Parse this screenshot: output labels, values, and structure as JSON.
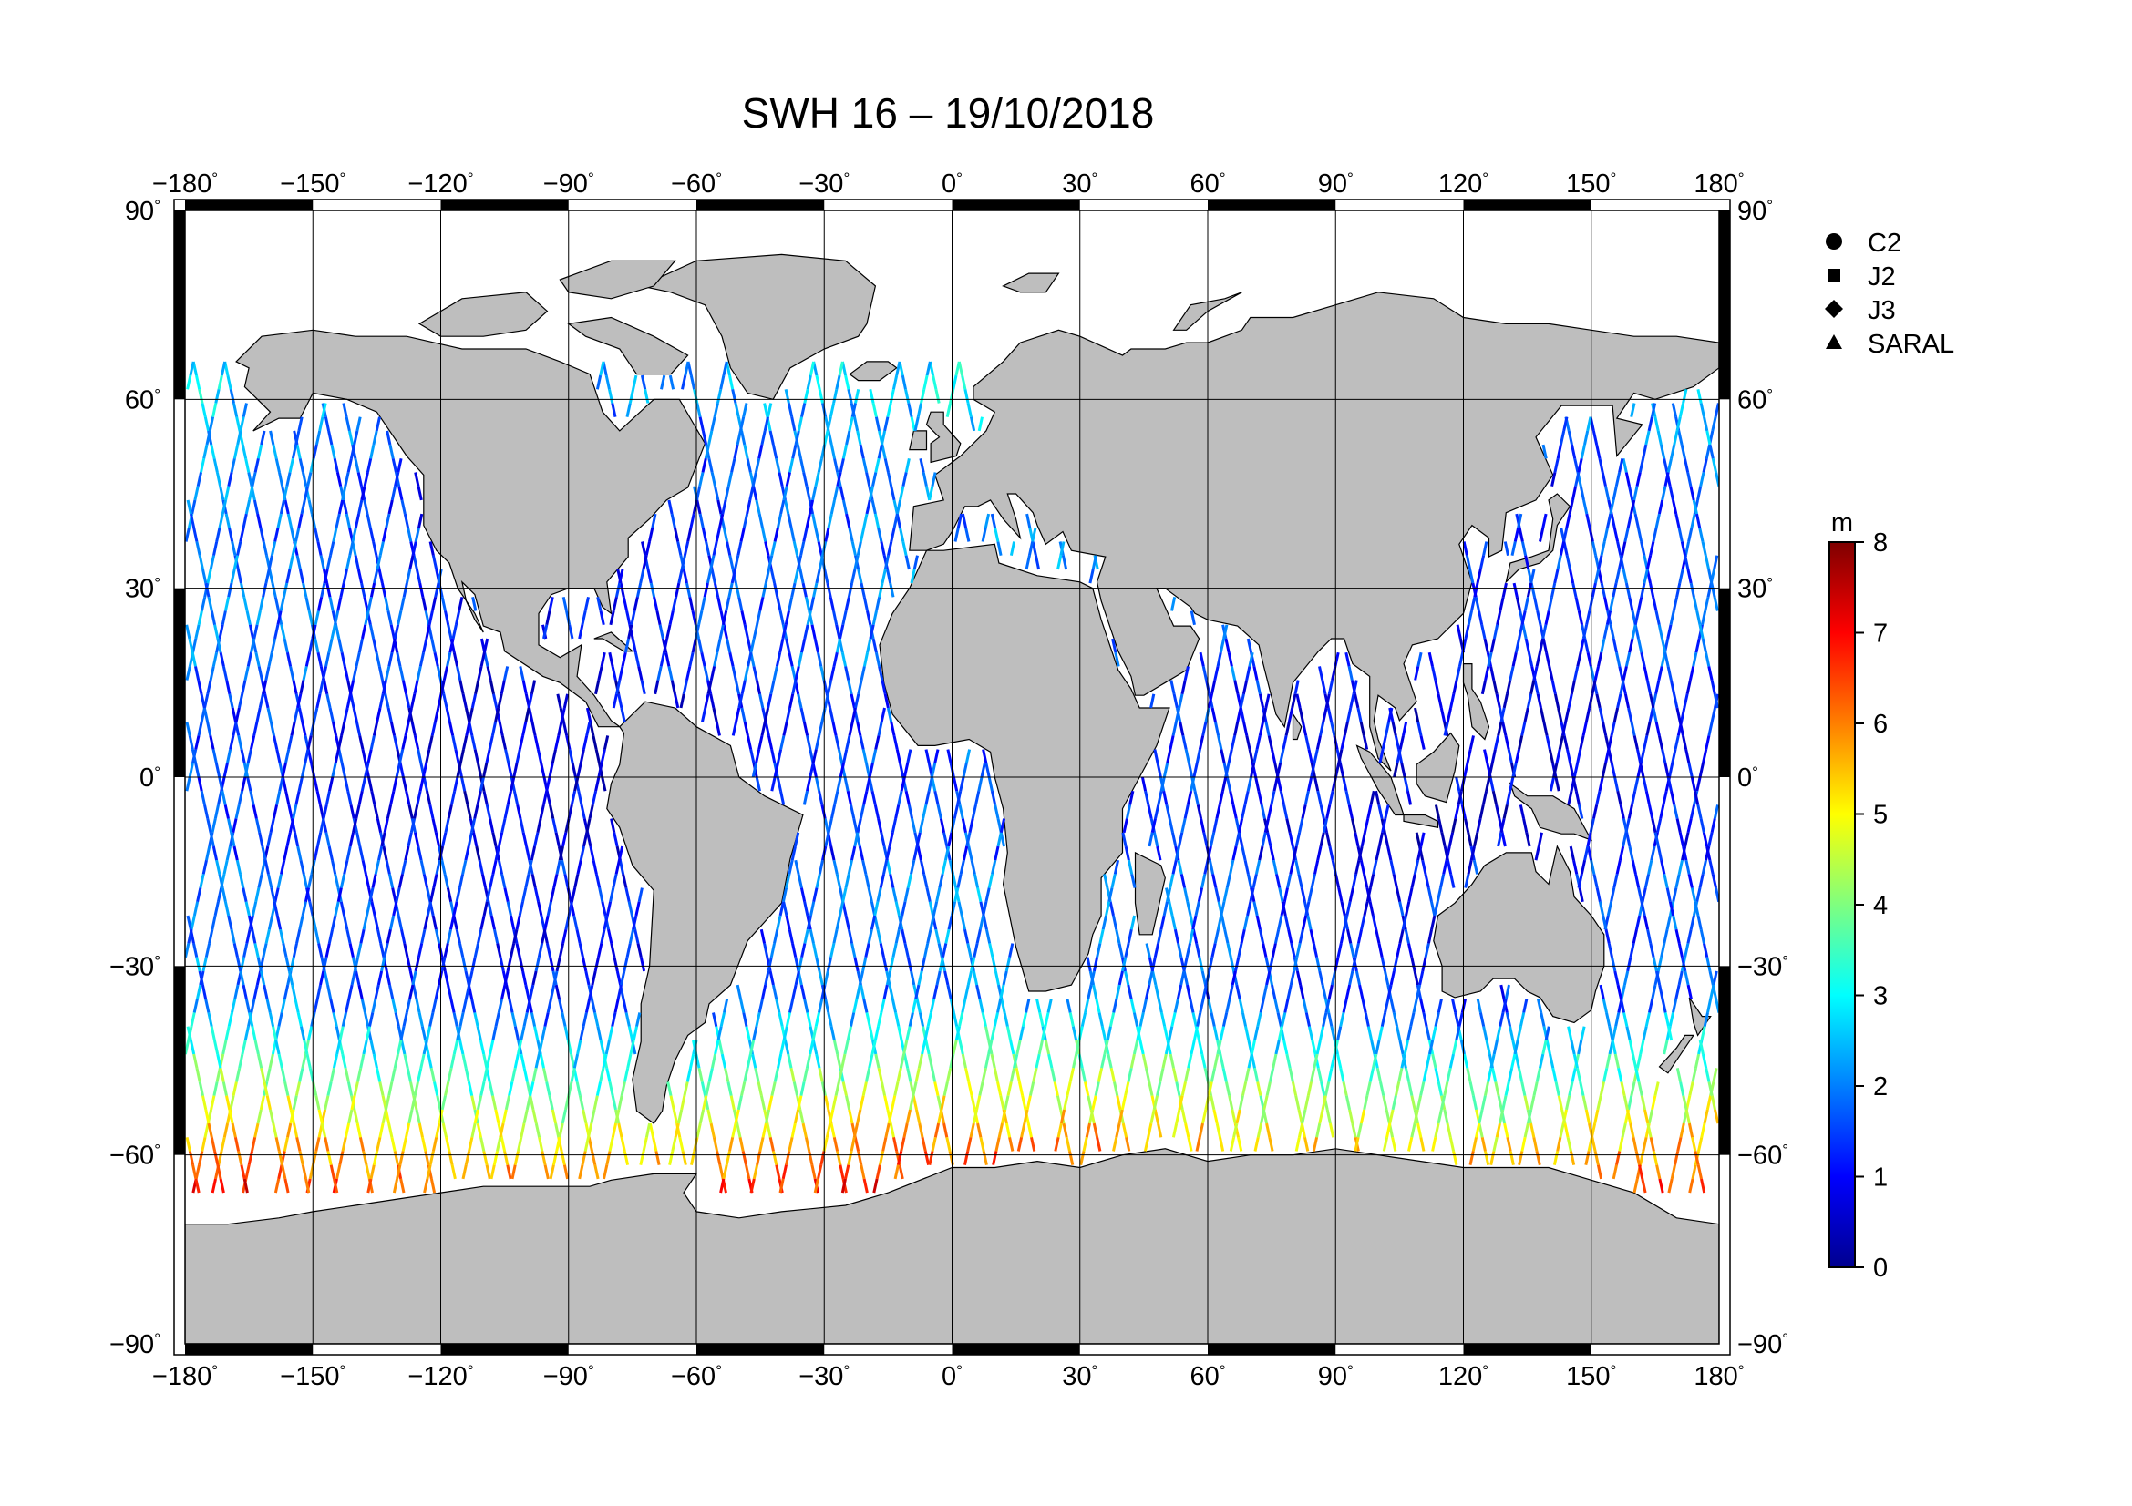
{
  "title": "SWH 16 – 19/10/2018",
  "map": {
    "projection": "equirectangular",
    "lon_range": [
      -180,
      180
    ],
    "lat_range": [
      -90,
      90
    ],
    "grid": true,
    "land_color": "#bebebe",
    "ocean_color": "#ffffff",
    "lon_ticks": [
      {
        "value": -180,
        "label": "−180"
      },
      {
        "value": -150,
        "label": "−150"
      },
      {
        "value": -120,
        "label": "−120"
      },
      {
        "value": -90,
        "label": "−90"
      },
      {
        "value": -60,
        "label": "−60"
      },
      {
        "value": -30,
        "label": "−30"
      },
      {
        "value": 0,
        "label": "0"
      },
      {
        "value": 30,
        "label": "30"
      },
      {
        "value": 60,
        "label": "60"
      },
      {
        "value": 90,
        "label": "90"
      },
      {
        "value": 120,
        "label": "120"
      },
      {
        "value": 150,
        "label": "150"
      },
      {
        "value": 180,
        "label": "180"
      }
    ],
    "lat_ticks": [
      {
        "value": 90,
        "label": "90"
      },
      {
        "value": 60,
        "label": "60"
      },
      {
        "value": 30,
        "label": "30"
      },
      {
        "value": 0,
        "label": "0"
      },
      {
        "value": -30,
        "label": "−30"
      },
      {
        "value": -60,
        "label": "−60"
      },
      {
        "value": -90,
        "label": "−90"
      }
    ],
    "degree_mark": "°"
  },
  "legend": {
    "placement": "top-right, outside map",
    "items": [
      {
        "symbol": "circle",
        "label": "C2"
      },
      {
        "symbol": "square",
        "label": "J2"
      },
      {
        "symbol": "diamond",
        "label": "J3"
      },
      {
        "symbol": "triangle",
        "label": "SARAL"
      }
    ]
  },
  "colorbar": {
    "unit": "m",
    "min": 0,
    "max": 8,
    "ticks": [
      "0",
      "1",
      "2",
      "3",
      "4",
      "5",
      "6",
      "7",
      "8"
    ],
    "colormap": [
      "#00008f",
      "#0000ff",
      "#007fff",
      "#00ffff",
      "#7fff7f",
      "#ffff00",
      "#ff7f00",
      "#ff0000",
      "#7f0000"
    ]
  }
}
